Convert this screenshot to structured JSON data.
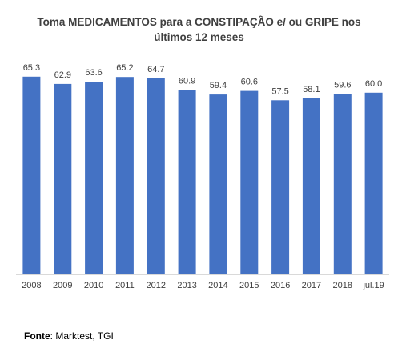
{
  "chart_data": {
    "type": "bar",
    "title_lines": [
      "Toma MEDICAMENTOS para a CONSTIPAÇÃO e/ ou GRIPE nos",
      "últimos 12 meses"
    ],
    "categories": [
      "2008",
      "2009",
      "2010",
      "2011",
      "2012",
      "2013",
      "2014",
      "2015",
      "2016",
      "2017",
      "2018",
      "jul.19"
    ],
    "values": [
      65.3,
      62.9,
      63.6,
      65.2,
      64.7,
      60.9,
      59.4,
      60.6,
      57.5,
      58.1,
      59.6,
      60.0
    ],
    "value_labels": [
      "65.3",
      "62.9",
      "63.6",
      "65.2",
      "64.7",
      "60.9",
      "59.4",
      "60.6",
      "57.5",
      "58.1",
      "59.6",
      "60.0"
    ],
    "ylim": [
      0,
      70
    ],
    "bar_color": "#4472C4",
    "grid": false,
    "legend": "none"
  },
  "source": {
    "label": "Fonte",
    "text": ": Marktest, TGI"
  }
}
